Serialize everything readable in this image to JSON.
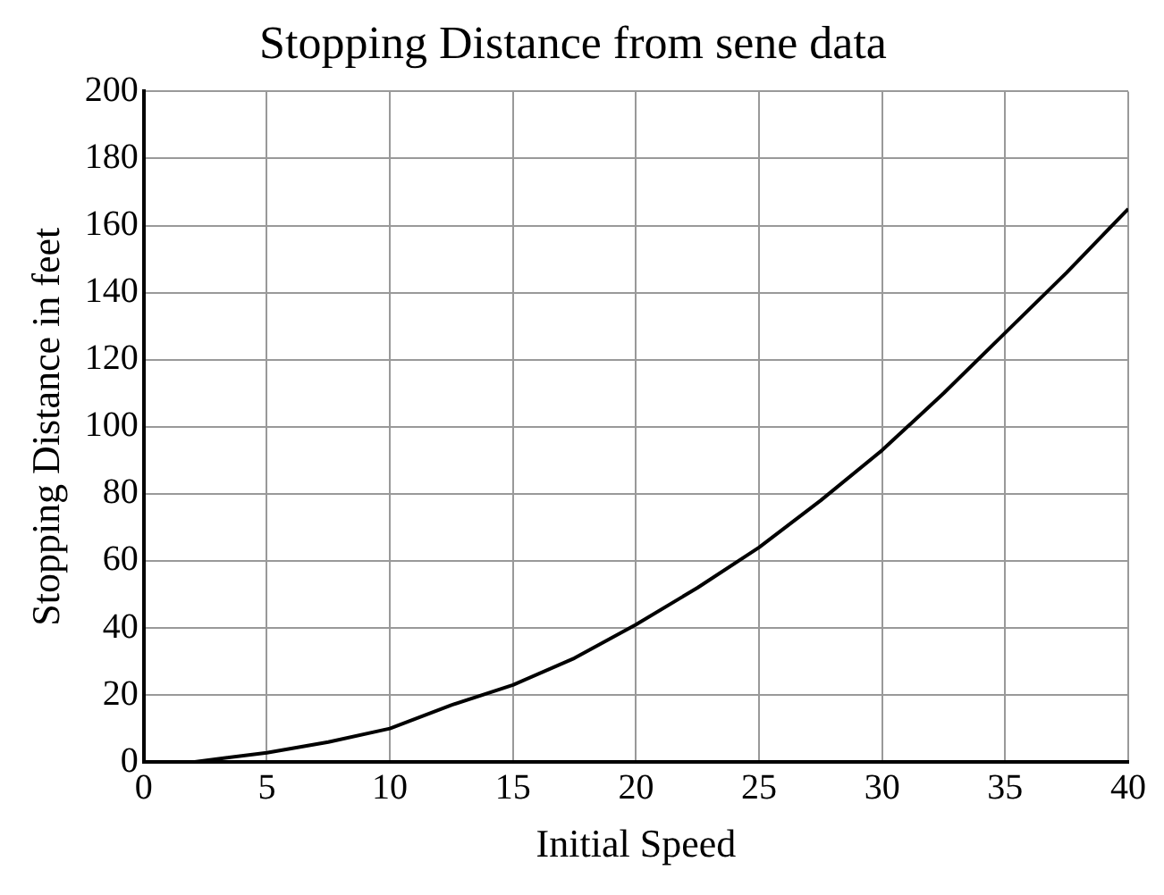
{
  "chart_data": {
    "type": "line",
    "title": "Stopping Distance from sene data",
    "xlabel": "Initial Speed",
    "ylabel": "Stopping Distance in feet",
    "x": [
      0,
      2,
      5,
      7.5,
      10,
      12.5,
      15,
      17.5,
      20,
      22.5,
      25,
      27.5,
      30,
      32.5,
      35,
      37.5,
      40
    ],
    "series": [
      {
        "color": "#000000",
        "values": [
          0,
          0,
          2.8,
          6,
          10,
          17,
          23,
          31,
          41,
          52,
          64,
          78,
          93,
          110,
          128,
          146,
          165
        ]
      }
    ],
    "xlim": [
      0,
      40
    ],
    "xticks": [
      0,
      5,
      10,
      15,
      20,
      25,
      30,
      35,
      40
    ],
    "ylim": [
      0,
      200
    ],
    "yticks": [
      0,
      20,
      40,
      60,
      80,
      100,
      120,
      140,
      160,
      180,
      200
    ],
    "grid": true,
    "legend": false,
    "marker": "none",
    "line_style": "solid"
  }
}
